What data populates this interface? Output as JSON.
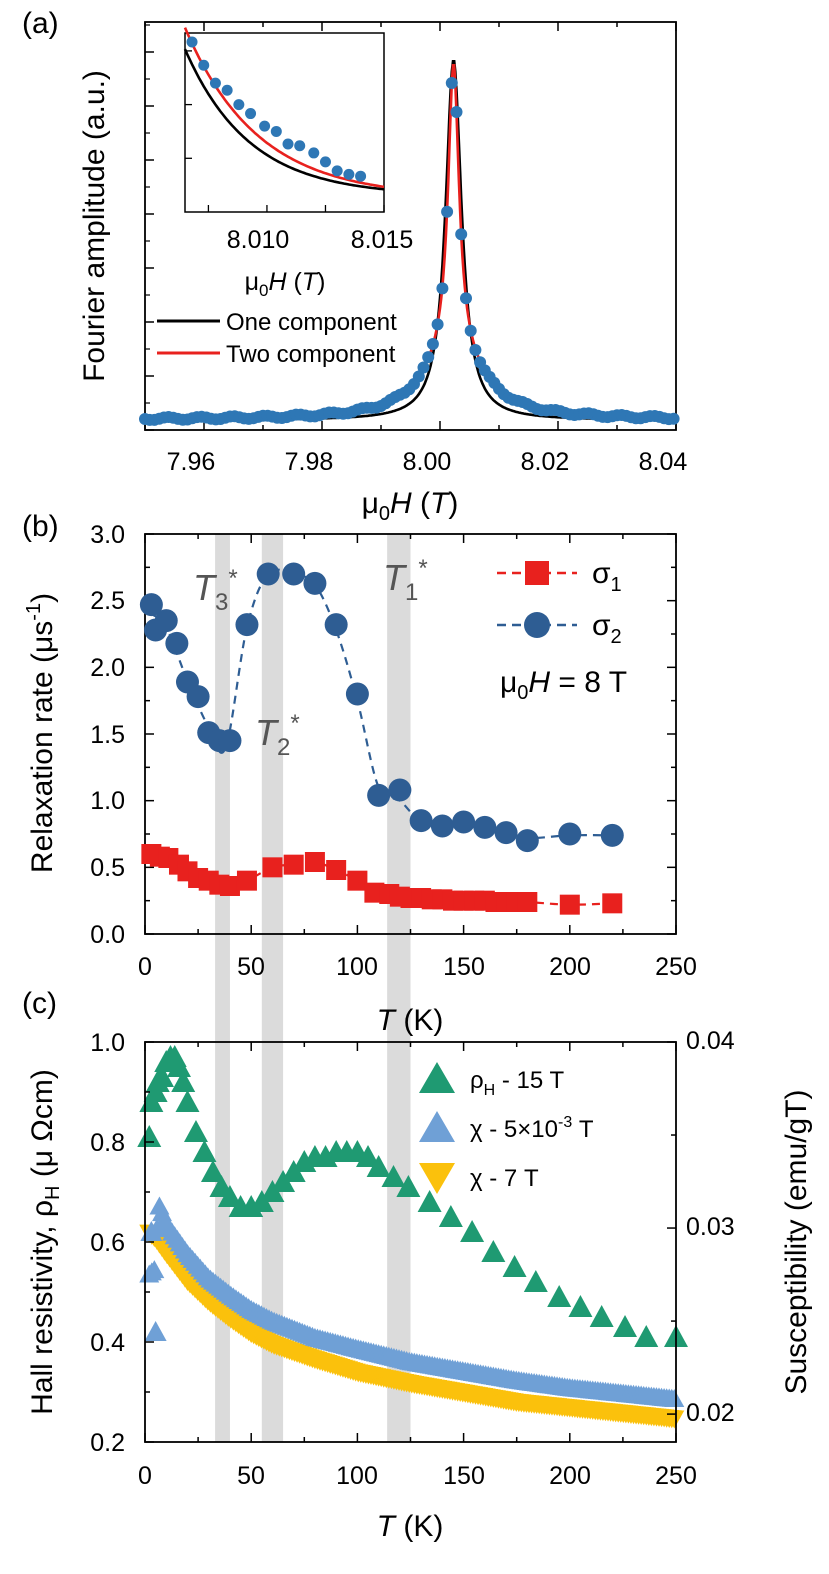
{
  "chart_data": [
    {
      "panel": "a",
      "panel_label": "(a)",
      "type": "scatter",
      "xlabel": "μ0H (T)",
      "ylabel": "Fourier amplitude (a.u.)",
      "xlim": [
        7.95,
        8.04
      ],
      "ylim": [
        0,
        1
      ],
      "xticks": [
        "7.96",
        "7.98",
        "8.00",
        "8.02",
        "8.04"
      ],
      "peak_center": 8.0023,
      "series": [
        {
          "name": "data",
          "color": "#2e77b5",
          "style": "points"
        },
        {
          "name": "One component",
          "color": "#000000",
          "style": "line"
        },
        {
          "name": "Two component",
          "color": "#e8211e",
          "style": "line"
        }
      ],
      "legend": [
        "One component",
        "Two component"
      ],
      "inset": {
        "xlabel": "μ0H (T)",
        "xlim": [
          8.0065,
          8.015
        ],
        "xticks": [
          "8.010",
          "8.015"
        ],
        "data_x": [
          8.0068,
          8.0073,
          8.0078,
          8.0083,
          8.0088,
          8.0093,
          8.0099,
          8.0104,
          8.0109,
          8.0114,
          8.012,
          8.0125,
          8.013,
          8.0135,
          8.014
        ],
        "data_y": [
          0.95,
          0.82,
          0.72,
          0.68,
          0.6,
          0.55,
          0.48,
          0.45,
          0.38,
          0.37,
          0.33,
          0.28,
          0.23,
          0.21,
          0.2
        ]
      }
    },
    {
      "panel": "b",
      "panel_label": "(b)",
      "type": "scatter",
      "xlabel": "T (K)",
      "ylabel": "Relaxation rate (μs-1)",
      "xlim": [
        0,
        250
      ],
      "ylim": [
        0,
        3.0
      ],
      "xticks": [
        "0",
        "50",
        "100",
        "150",
        "200",
        "250"
      ],
      "yticks": [
        "0.0",
        "0.5",
        "1.0",
        "1.5",
        "2.0",
        "2.5",
        "3.0"
      ],
      "series": [
        {
          "name": "σ1",
          "color": "#e8211e",
          "marker": "square",
          "x": [
            3,
            7,
            11,
            16,
            20,
            25,
            30,
            35,
            40,
            48,
            60,
            70,
            80,
            90,
            100,
            108,
            115,
            120,
            125,
            130,
            135,
            140,
            145,
            150,
            155,
            160,
            165,
            170,
            175,
            180,
            200,
            220
          ],
          "y": [
            0.6,
            0.58,
            0.57,
            0.52,
            0.47,
            0.42,
            0.4,
            0.37,
            0.36,
            0.4,
            0.5,
            0.52,
            0.54,
            0.48,
            0.4,
            0.31,
            0.3,
            0.28,
            0.27,
            0.27,
            0.26,
            0.26,
            0.25,
            0.25,
            0.25,
            0.25,
            0.24,
            0.24,
            0.24,
            0.24,
            0.22,
            0.23
          ]
        },
        {
          "name": "σ2",
          "color": "#2e5d93",
          "marker": "circle",
          "x": [
            3,
            5,
            10,
            15,
            20,
            25,
            30,
            35,
            40,
            48,
            58,
            70,
            80,
            90,
            100,
            110,
            120,
            130,
            140,
            150,
            160,
            170,
            180,
            200,
            220
          ],
          "y": [
            2.47,
            2.28,
            2.35,
            2.18,
            1.89,
            1.78,
            1.51,
            1.45,
            1.45,
            2.32,
            2.7,
            2.7,
            2.63,
            2.32,
            1.8,
            1.04,
            1.08,
            0.85,
            0.81,
            0.84,
            0.8,
            0.76,
            0.7,
            0.75,
            0.74
          ]
        }
      ],
      "legend": [
        "σ1",
        "σ2"
      ],
      "annotations": [
        "μ0H = 8 T",
        "T3*",
        "T2*",
        "T1*"
      ],
      "highlight_bands_K": [
        [
          33,
          40
        ],
        [
          55,
          65
        ],
        [
          114,
          125
        ]
      ]
    },
    {
      "panel": "c",
      "panel_label": "(c)",
      "type": "scatter",
      "xlabel": "T (K)",
      "ylabel_left": "Hall resistivity, ρH (μ Ωcm)",
      "ylabel_right": "Susceptibility (emu/gT)",
      "xlim": [
        0,
        250
      ],
      "ylim_left": [
        0.2,
        1.0
      ],
      "ylim_right": [
        0.0185,
        0.04
      ],
      "xticks": [
        "0",
        "50",
        "100",
        "150",
        "200",
        "250"
      ],
      "yticks_left": [
        "0.2",
        "0.4",
        "0.6",
        "0.8",
        "1.0"
      ],
      "yticks_right": [
        "0.02",
        "0.03",
        "0.04"
      ],
      "series": [
        {
          "name": "ρH - 15 T",
          "color": "#1f9a72",
          "marker": "triangle-up",
          "x": [
            2,
            3,
            5,
            6,
            8,
            10,
            12,
            14,
            16,
            18,
            20,
            24,
            28,
            32,
            36,
            40,
            45,
            50,
            55,
            60,
            65,
            70,
            75,
            80,
            85,
            90,
            95,
            100,
            105,
            110,
            117,
            124,
            134,
            144,
            154,
            164,
            174,
            184,
            195,
            205,
            215,
            226,
            236,
            250
          ],
          "y": [
            0.81,
            0.88,
            0.9,
            0.92,
            0.93,
            0.96,
            0.97,
            0.97,
            0.95,
            0.92,
            0.88,
            0.82,
            0.78,
            0.74,
            0.71,
            0.69,
            0.67,
            0.67,
            0.68,
            0.7,
            0.72,
            0.74,
            0.76,
            0.77,
            0.77,
            0.78,
            0.78,
            0.78,
            0.77,
            0.75,
            0.73,
            0.71,
            0.68,
            0.65,
            0.62,
            0.58,
            0.55,
            0.52,
            0.49,
            0.47,
            0.45,
            0.43,
            0.41,
            0.41
          ]
        },
        {
          "name": "χ - 5×10-3 T",
          "color": "#6fa0d6",
          "marker": "triangle-up",
          "style": "dense band",
          "x": [
            2,
            5,
            6,
            10,
            20,
            30,
            40,
            50,
            60,
            80,
            100,
            125,
            150,
            175,
            200,
            225,
            250
          ],
          "y": [
            0.0275,
            0.0278,
            0.0314,
            0.0302,
            0.0286,
            0.0273,
            0.0264,
            0.0256,
            0.025,
            0.0241,
            0.0235,
            0.0228,
            0.0223,
            0.0218,
            0.0214,
            0.0211,
            0.0208
          ],
          "outliers_left_axis": [
            [
              3,
              0.62
            ],
            [
              5,
              0.42
            ]
          ]
        },
        {
          "name": "χ - 7 T",
          "color": "#fbc10c",
          "marker": "triangle-down",
          "style": "dense band",
          "x": [
            2,
            5,
            10,
            20,
            30,
            40,
            50,
            60,
            80,
            100,
            125,
            150,
            175,
            200,
            225,
            250
          ],
          "y": [
            0.0297,
            0.0294,
            0.0286,
            0.0271,
            0.026,
            0.0251,
            0.0243,
            0.0237,
            0.0229,
            0.0222,
            0.0216,
            0.0211,
            0.0206,
            0.0203,
            0.02,
            0.0197
          ]
        }
      ],
      "legend": [
        "ρH - 15 T",
        "χ - 5×10-3 T",
        "χ - 7 T"
      ],
      "highlight_bands_K": [
        [
          33,
          40
        ],
        [
          55,
          65
        ],
        [
          114,
          125
        ]
      ]
    }
  ]
}
